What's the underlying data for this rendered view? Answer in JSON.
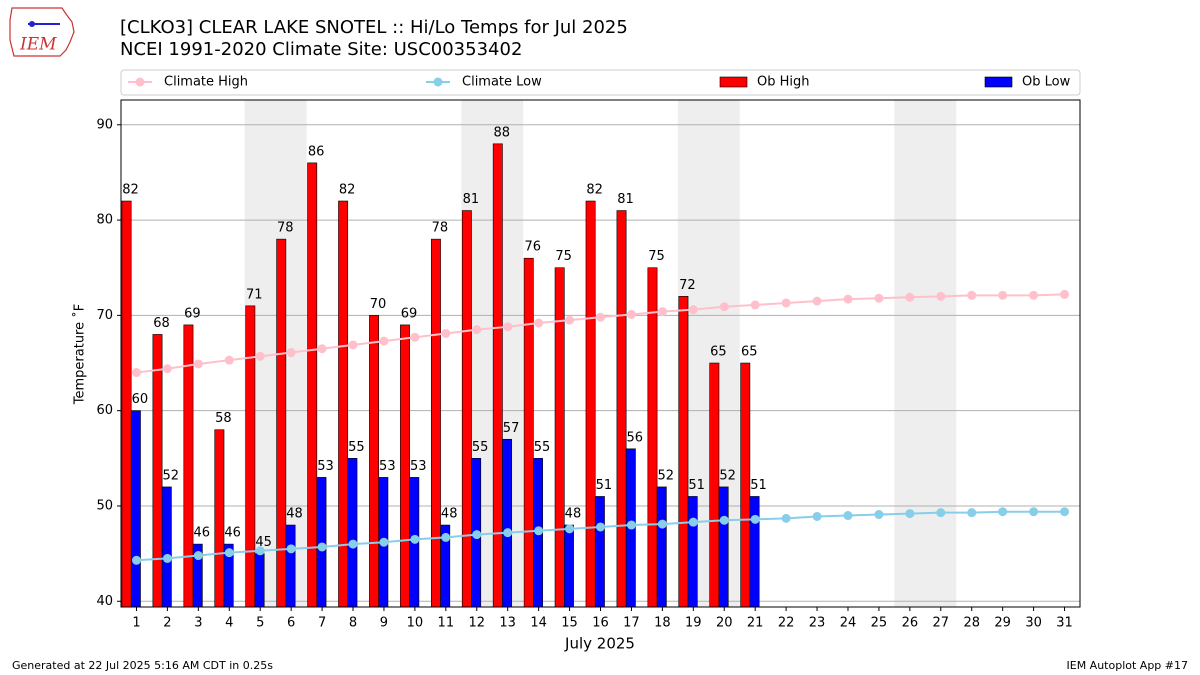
{
  "logo": "IEM",
  "footer": {
    "generated": "Generated at 22 Jul 2025 5:16 AM CDT in 0.25s",
    "app": "IEM Autoplot App #17"
  },
  "chart_data": {
    "type": "bar",
    "title": "[CLKO3] CLEAR LAKE SNOTEL :: Hi/Lo Temps for Jul 2025",
    "subtitle": "NCEI 1991-2020 Climate Site: USC00353402",
    "x_label": "July 2025",
    "y_label": "Temperature ˚F",
    "x": [
      1,
      2,
      3,
      4,
      5,
      6,
      7,
      8,
      9,
      10,
      11,
      12,
      13,
      14,
      15,
      16,
      17,
      18,
      19,
      20,
      21,
      22,
      23,
      24,
      25,
      26,
      27,
      28,
      29,
      30,
      31
    ],
    "xlim": [
      0.5,
      31.5
    ],
    "xticks": [
      1,
      2,
      3,
      4,
      5,
      6,
      7,
      8,
      9,
      10,
      11,
      12,
      13,
      14,
      15,
      16,
      17,
      18,
      19,
      20,
      21,
      22,
      23,
      24,
      25,
      26,
      27,
      28,
      29,
      30,
      31
    ],
    "ylim": [
      39.4,
      92.6
    ],
    "yticks": [
      40,
      50,
      60,
      70,
      80,
      90
    ],
    "grid": true,
    "weekend_shading": [
      [
        5,
        6
      ],
      [
        12,
        13
      ],
      [
        19,
        20
      ],
      [
        26,
        27
      ]
    ],
    "series": [
      {
        "name": "Climate High",
        "type": "line",
        "color": "#ffc0cb",
        "values": [
          64.0,
          64.4,
          64.9,
          65.3,
          65.7,
          66.1,
          66.5,
          66.9,
          67.3,
          67.7,
          68.1,
          68.5,
          68.8,
          69.2,
          69.5,
          69.8,
          70.1,
          70.4,
          70.6,
          70.9,
          71.1,
          71.3,
          71.5,
          71.7,
          71.8,
          71.9,
          72.0,
          72.1,
          72.1,
          72.1,
          72.2
        ]
      },
      {
        "name": "Climate Low",
        "type": "line",
        "color": "#87ceeb",
        "values": [
          44.3,
          44.5,
          44.8,
          45.1,
          45.3,
          45.5,
          45.7,
          46.0,
          46.2,
          46.5,
          46.7,
          47.0,
          47.2,
          47.4,
          47.6,
          47.8,
          48.0,
          48.1,
          48.3,
          48.5,
          48.6,
          48.7,
          48.9,
          49.0,
          49.1,
          49.2,
          49.3,
          49.3,
          49.4,
          49.4,
          49.4
        ]
      },
      {
        "name": "Ob High",
        "type": "bar",
        "color": "#ff0000",
        "values": [
          82,
          68,
          69,
          58,
          71,
          78,
          86,
          82,
          70,
          69,
          78,
          81,
          88,
          76,
          75,
          82,
          81,
          75,
          72,
          65,
          65,
          null,
          null,
          null,
          null,
          null,
          null,
          null,
          null,
          null,
          null
        ]
      },
      {
        "name": "Ob Low",
        "type": "bar",
        "color": "#0000ff",
        "values": [
          60,
          52,
          46,
          46,
          45,
          48,
          53,
          55,
          53,
          53,
          48,
          55,
          57,
          55,
          48,
          51,
          56,
          52,
          51,
          52,
          51,
          null,
          null,
          null,
          null,
          null,
          null,
          null,
          null,
          null,
          null
        ]
      }
    ]
  }
}
